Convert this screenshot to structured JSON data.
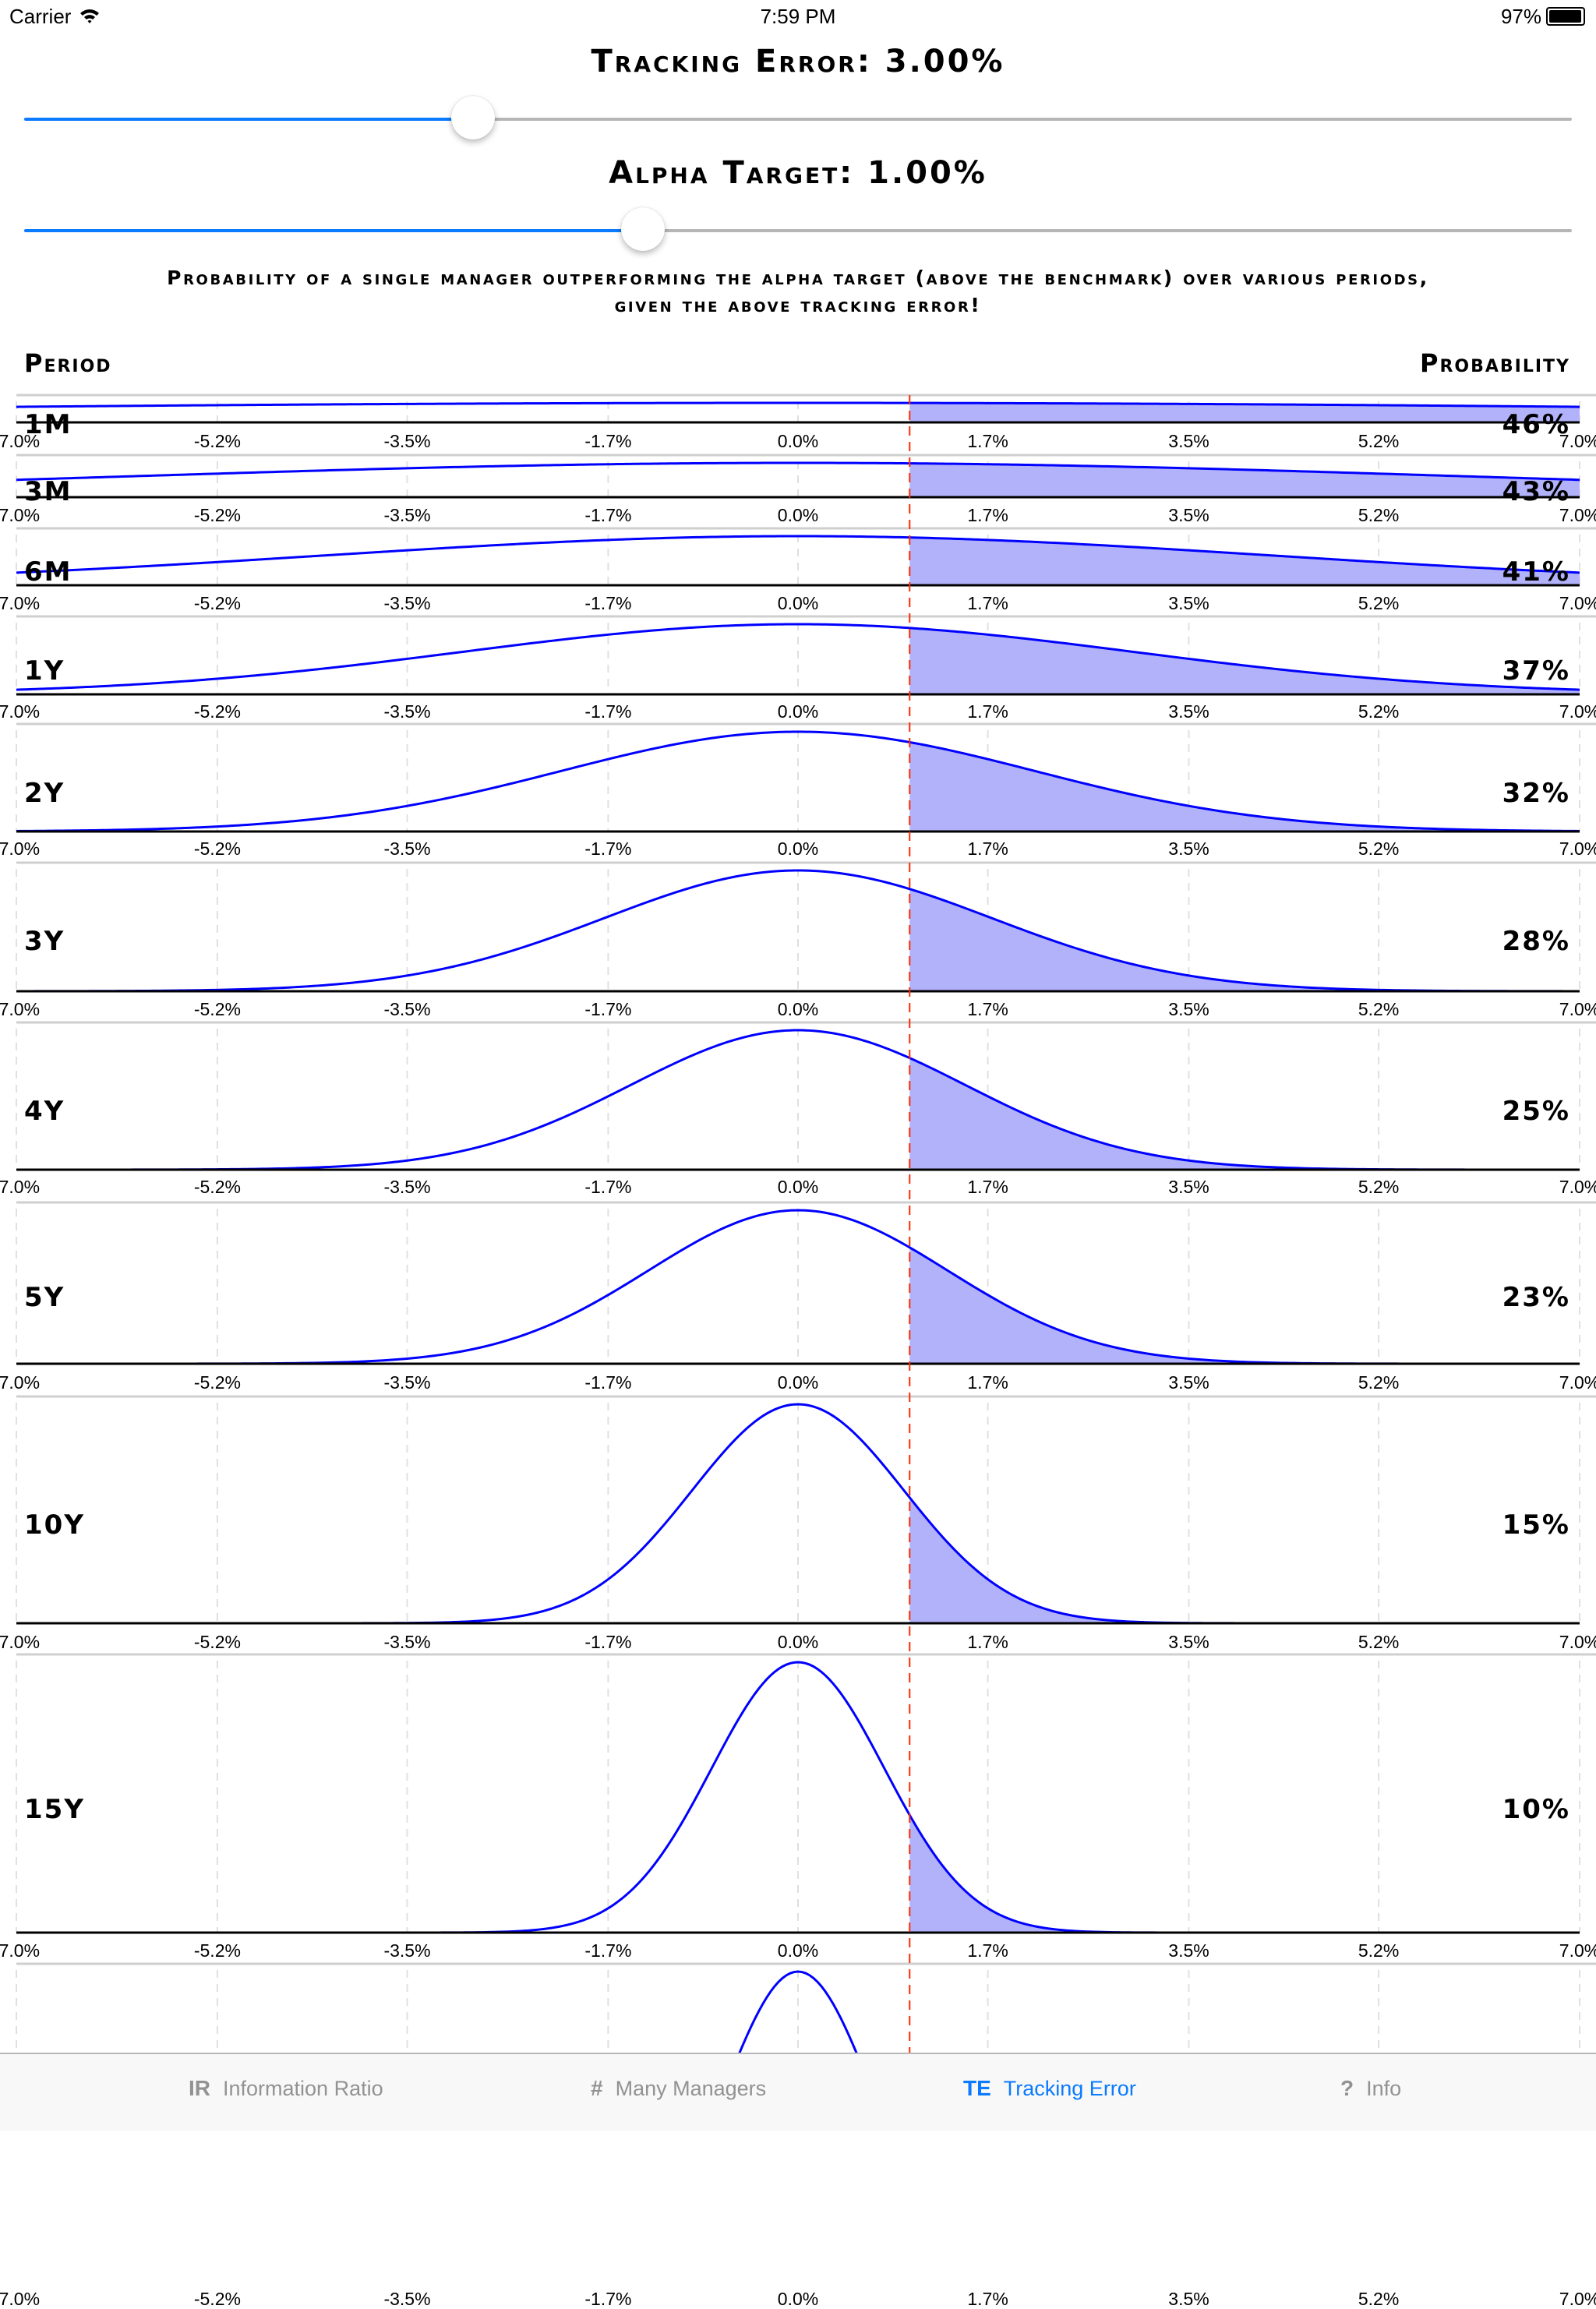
{
  "status": {
    "carrier": "Carrier",
    "time": "7:59 PM",
    "battery": "97%",
    "battery_level": 0.97
  },
  "tracking_error": {
    "label": "Tracking Error: 3.00%",
    "value_pct": 3.0,
    "slider_fraction": 0.29
  },
  "alpha_target": {
    "label": "Alpha Target: 1.00%",
    "value_pct": 1.0,
    "slider_fraction": 0.4
  },
  "description": [
    "Probability of a single manager outperforming the alpha target (above the benchmark) over various periods,",
    "given the above tracking error!"
  ],
  "headers": {
    "period": "Period",
    "probability": "Probability"
  },
  "chart_data": {
    "type": "area",
    "xlim": [
      -7.0,
      7.0
    ],
    "x_ticks": [
      "-7.0%",
      "-5.2%",
      "-3.5%",
      "-1.7%",
      "0.0%",
      "1.7%",
      "3.5%",
      "5.2%",
      "7.0%"
    ],
    "grid": true,
    "tracking_error_pct": 3.0,
    "alpha_target_pct": 1.0,
    "rows": [
      {
        "period": "1M",
        "years": 0.0833,
        "probability": "46%"
      },
      {
        "period": "3M",
        "years": 0.25,
        "probability": "43%"
      },
      {
        "period": "6M",
        "years": 0.5,
        "probability": "41%"
      },
      {
        "period": "1Y",
        "years": 1,
        "probability": "37%"
      },
      {
        "period": "2Y",
        "years": 2,
        "probability": "32%"
      },
      {
        "period": "3Y",
        "years": 3,
        "probability": "28%"
      },
      {
        "period": "4Y",
        "years": 4,
        "probability": "25%"
      },
      {
        "period": "5Y",
        "years": 5,
        "probability": "23%"
      },
      {
        "period": "10Y",
        "years": 10,
        "probability": "15%"
      },
      {
        "period": "15Y",
        "years": 15,
        "probability": "10%"
      },
      {
        "years": 20
      }
    ]
  },
  "tabs": [
    {
      "icon": "IR",
      "label": "Information Ratio",
      "active": false
    },
    {
      "icon": "#",
      "label": "Many Managers",
      "active": false
    },
    {
      "icon": "TE",
      "label": "Tracking Error",
      "active": true
    },
    {
      "icon": "?",
      "label": "Info",
      "active": false
    }
  ],
  "colors": {
    "accent": "#0a7aff",
    "curve": "#0000ff",
    "fill": "#b2b2fa",
    "target_line": "#ff2a00",
    "track_off": "#b6b6b6"
  }
}
